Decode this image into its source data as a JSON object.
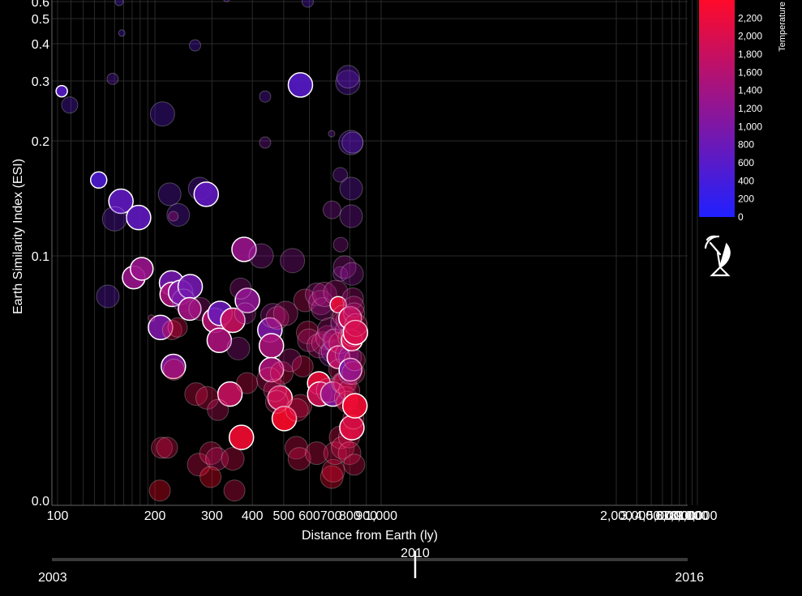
{
  "chart_data": {
    "type": "scatter",
    "title": "",
    "xlabel": "Distance from Earth (ly)",
    "ylabel": "Earth Similarity Index (ESI)",
    "x_scale": "log",
    "y_scale": "log",
    "x_tick_labels": [
      "100",
      "200",
      "300",
      "400",
      "500",
      "600",
      "700",
      "800",
      "900",
      "1,000",
      "2,000",
      "3,000",
      "4,000",
      "5,000",
      "6,000",
      "7,000",
      "8,000",
      "9,000",
      "10,000"
    ],
    "y_tick_labels": [
      "0.0",
      "0.1",
      "0.2",
      "0.3",
      "0.4",
      "0.5",
      "0.6"
    ],
    "color_legend": {
      "title": "Temperature",
      "ticks": [
        "0",
        "200",
        "400",
        "600",
        "800",
        "1,000",
        "1,200",
        "1,400",
        "1,600",
        "1,800",
        "2,000",
        "2,200"
      ],
      "min": 0,
      "max": 2400,
      "color_low": "#2020ff",
      "color_high": "#ff0a2a"
    },
    "timeline": {
      "start": "2003",
      "end": "2016",
      "current": "2010",
      "current_fraction": 0.5714
    },
    "points": [
      {
        "x": 103,
        "y": 0.28,
        "t": 600,
        "s": 7,
        "hi": true
      },
      {
        "x": 109,
        "y": 0.255,
        "t": 600,
        "s": 10,
        "hi": false
      },
      {
        "x": 134,
        "y": 0.158,
        "t": 500,
        "s": 10,
        "hi": true
      },
      {
        "x": 157,
        "y": 0.139,
        "t": 700,
        "s": 15,
        "hi": true
      },
      {
        "x": 178,
        "y": 0.126,
        "t": 700,
        "s": 15,
        "hi": true
      },
      {
        "x": 150,
        "y": 0.125,
        "t": 700,
        "s": 15,
        "hi": false
      },
      {
        "x": 143,
        "y": 0.077,
        "t": 700,
        "s": 14,
        "hi": false
      },
      {
        "x": 172,
        "y": 0.087,
        "t": 1300,
        "s": 14,
        "hi": true
      },
      {
        "x": 182,
        "y": 0.092,
        "t": 1300,
        "s": 14,
        "hi": true
      },
      {
        "x": 148,
        "y": 0.305,
        "t": 700,
        "s": 7,
        "hi": false
      },
      {
        "x": 158,
        "y": 0.44,
        "t": 500,
        "s": 4,
        "hi": false
      },
      {
        "x": 155,
        "y": 0.6,
        "t": 500,
        "s": 5,
        "hi": false
      },
      {
        "x": 211,
        "y": 0.24,
        "t": 600,
        "s": 15,
        "hi": false
      },
      {
        "x": 222,
        "y": 0.145,
        "t": 700,
        "s": 14,
        "hi": false
      },
      {
        "x": 236,
        "y": 0.128,
        "t": 700,
        "s": 14,
        "hi": false
      },
      {
        "x": 228,
        "y": 0.127,
        "t": 1500,
        "s": 6,
        "hi": false
      },
      {
        "x": 208,
        "y": 0.063,
        "t": 1000,
        "s": 15,
        "hi": true
      },
      {
        "x": 225,
        "y": 0.084,
        "t": 900,
        "s": 15,
        "hi": true
      },
      {
        "x": 226,
        "y": 0.078,
        "t": 1500,
        "s": 15,
        "hi": true
      },
      {
        "x": 240,
        "y": 0.079,
        "t": 1000,
        "s": 15,
        "hi": true
      },
      {
        "x": 257,
        "y": 0.082,
        "t": 900,
        "s": 15,
        "hi": true
      },
      {
        "x": 245,
        "y": 0.075,
        "t": 900,
        "s": 14,
        "hi": false
      },
      {
        "x": 228,
        "y": 0.049,
        "t": 1100,
        "s": 15,
        "hi": true
      },
      {
        "x": 256,
        "y": 0.071,
        "t": 1400,
        "s": 14,
        "hi": true
      },
      {
        "x": 276,
        "y": 0.071,
        "t": 1400,
        "s": 14,
        "hi": false
      },
      {
        "x": 226,
        "y": 0.062,
        "t": 2000,
        "s": 12,
        "hi": false
      },
      {
        "x": 235,
        "y": 0.063,
        "t": 2000,
        "s": 12,
        "hi": false
      },
      {
        "x": 195,
        "y": 0.067,
        "t": 1500,
        "s": 4,
        "hi": false
      },
      {
        "x": 229,
        "y": 0.048,
        "t": 2000,
        "s": 13,
        "hi": false
      },
      {
        "x": 266,
        "y": 0.395,
        "t": 600,
        "s": 7,
        "hi": false
      },
      {
        "x": 275,
        "y": 0.15,
        "t": 700,
        "s": 14,
        "hi": false
      },
      {
        "x": 288,
        "y": 0.145,
        "t": 700,
        "s": 15,
        "hi": true
      },
      {
        "x": 306,
        "y": 0.066,
        "t": 1600,
        "s": 15,
        "hi": true
      },
      {
        "x": 318,
        "y": 0.069,
        "t": 800,
        "s": 15,
        "hi": true
      },
      {
        "x": 316,
        "y": 0.058,
        "t": 1500,
        "s": 15,
        "hi": true
      },
      {
        "x": 348,
        "y": 0.066,
        "t": 1800,
        "s": 15,
        "hi": true
      },
      {
        "x": 341,
        "y": 0.041,
        "t": 1800,
        "s": 15,
        "hi": true
      },
      {
        "x": 370,
        "y": 0.031,
        "t": 2300,
        "s": 15,
        "hi": true
      },
      {
        "x": 377,
        "y": 0.104,
        "t": 1300,
        "s": 15,
        "hi": true
      },
      {
        "x": 386,
        "y": 0.075,
        "t": 1200,
        "s": 15,
        "hi": true
      },
      {
        "x": 380,
        "y": 0.069,
        "t": 1300,
        "s": 13,
        "hi": false
      },
      {
        "x": 368,
        "y": 0.081,
        "t": 1300,
        "s": 13,
        "hi": false
      },
      {
        "x": 362,
        "y": 0.055,
        "t": 1300,
        "s": 14,
        "hi": false
      },
      {
        "x": 268,
        "y": 0.041,
        "t": 2000,
        "s": 14,
        "hi": false
      },
      {
        "x": 290,
        "y": 0.04,
        "t": 2000,
        "s": 14,
        "hi": false
      },
      {
        "x": 313,
        "y": 0.037,
        "t": 1800,
        "s": 13,
        "hi": false
      },
      {
        "x": 385,
        "y": 0.044,
        "t": 2000,
        "s": 13,
        "hi": false
      },
      {
        "x": 210,
        "y": 0.029,
        "t": 2000,
        "s": 13,
        "hi": false
      },
      {
        "x": 218,
        "y": 0.029,
        "t": 2000,
        "s": 13,
        "hi": false
      },
      {
        "x": 207,
        "y": 0.022,
        "t": 2400,
        "s": 13,
        "hi": false
      },
      {
        "x": 273,
        "y": 0.026,
        "t": 2000,
        "s": 14,
        "hi": false
      },
      {
        "x": 298,
        "y": 0.028,
        "t": 2000,
        "s": 14,
        "hi": false
      },
      {
        "x": 311,
        "y": 0.027,
        "t": 1800,
        "s": 14,
        "hi": false
      },
      {
        "x": 297,
        "y": 0.024,
        "t": 2400,
        "s": 13,
        "hi": false
      },
      {
        "x": 348,
        "y": 0.027,
        "t": 2000,
        "s": 14,
        "hi": false
      },
      {
        "x": 352,
        "y": 0.022,
        "t": 2000,
        "s": 13,
        "hi": false
      },
      {
        "x": 426,
        "y": 0.1,
        "t": 1200,
        "s": 15,
        "hi": false
      },
      {
        "x": 453,
        "y": 0.062,
        "t": 1000,
        "s": 15,
        "hi": true
      },
      {
        "x": 458,
        "y": 0.056,
        "t": 1500,
        "s": 15,
        "hi": true
      },
      {
        "x": 458,
        "y": 0.048,
        "t": 1500,
        "s": 15,
        "hi": true
      },
      {
        "x": 463,
        "y": 0.068,
        "t": 1300,
        "s": 15,
        "hi": false
      },
      {
        "x": 478,
        "y": 0.067,
        "t": 1700,
        "s": 14,
        "hi": false
      },
      {
        "x": 507,
        "y": 0.069,
        "t": 1600,
        "s": 15,
        "hi": false
      },
      {
        "x": 487,
        "y": 0.04,
        "t": 2000,
        "s": 15,
        "hi": true
      },
      {
        "x": 502,
        "y": 0.035,
        "t": 2400,
        "s": 15,
        "hi": true
      },
      {
        "x": 450,
        "y": 0.045,
        "t": 1800,
        "s": 15,
        "hi": false
      },
      {
        "x": 470,
        "y": 0.042,
        "t": 1800,
        "s": 14,
        "hi": false
      },
      {
        "x": 493,
        "y": 0.047,
        "t": 2000,
        "s": 14,
        "hi": false
      },
      {
        "x": 476,
        "y": 0.039,
        "t": 1800,
        "s": 14,
        "hi": false
      },
      {
        "x": 523,
        "y": 0.051,
        "t": 1500,
        "s": 14,
        "hi": false
      },
      {
        "x": 532,
        "y": 0.097,
        "t": 1200,
        "s": 15,
        "hi": false
      },
      {
        "x": 563,
        "y": 0.292,
        "t": 600,
        "s": 15,
        "hi": true
      },
      {
        "x": 438,
        "y": 0.27,
        "t": 700,
        "s": 7,
        "hi": false
      },
      {
        "x": 438,
        "y": 0.198,
        "t": 1000,
        "s": 7,
        "hi": false
      },
      {
        "x": 563,
        "y": 0.038,
        "t": 2000,
        "s": 14,
        "hi": false
      },
      {
        "x": 549,
        "y": 0.037,
        "t": 2000,
        "s": 14,
        "hi": false
      },
      {
        "x": 547,
        "y": 0.029,
        "t": 2000,
        "s": 14,
        "hi": false
      },
      {
        "x": 559,
        "y": 0.027,
        "t": 2000,
        "s": 14,
        "hi": false
      },
      {
        "x": 572,
        "y": 0.049,
        "t": 2000,
        "s": 13,
        "hi": false
      },
      {
        "x": 582,
        "y": 0.075,
        "t": 1800,
        "s": 14,
        "hi": false
      },
      {
        "x": 593,
        "y": 0.061,
        "t": 1900,
        "s": 14,
        "hi": false
      },
      {
        "x": 598,
        "y": 0.058,
        "t": 1600,
        "s": 14,
        "hi": false
      },
      {
        "x": 632,
        "y": 0.028,
        "t": 2000,
        "s": 14,
        "hi": false
      },
      {
        "x": 642,
        "y": 0.044,
        "t": 2200,
        "s": 14,
        "hi": true
      },
      {
        "x": 646,
        "y": 0.041,
        "t": 1900,
        "s": 15,
        "hi": true
      },
      {
        "x": 632,
        "y": 0.078,
        "t": 1400,
        "s": 14,
        "hi": false
      },
      {
        "x": 651,
        "y": 0.074,
        "t": 1400,
        "s": 15,
        "hi": false
      },
      {
        "x": 660,
        "y": 0.071,
        "t": 1400,
        "s": 14,
        "hi": false
      },
      {
        "x": 669,
        "y": 0.078,
        "t": 1500,
        "s": 15,
        "hi": false
      },
      {
        "x": 643,
        "y": 0.056,
        "t": 1600,
        "s": 15,
        "hi": false
      },
      {
        "x": 661,
        "y": 0.057,
        "t": 1700,
        "s": 14,
        "hi": false
      },
      {
        "x": 685,
        "y": 0.059,
        "t": 1600,
        "s": 15,
        "hi": false
      },
      {
        "x": 693,
        "y": 0.062,
        "t": 1500,
        "s": 15,
        "hi": false
      },
      {
        "x": 700,
        "y": 0.053,
        "t": 1100,
        "s": 15,
        "hi": false
      },
      {
        "x": 709,
        "y": 0.041,
        "t": 1100,
        "s": 15,
        "hi": true
      },
      {
        "x": 688,
        "y": 0.042,
        "t": 1700,
        "s": 15,
        "hi": false
      },
      {
        "x": 704,
        "y": 0.024,
        "t": 2300,
        "s": 14,
        "hi": false
      },
      {
        "x": 712,
        "y": 0.025,
        "t": 2200,
        "s": 14,
        "hi": false
      },
      {
        "x": 705,
        "y": 0.132,
        "t": 1100,
        "s": 11,
        "hi": false
      },
      {
        "x": 708,
        "y": 0.054,
        "t": 1300,
        "s": 14,
        "hi": false
      },
      {
        "x": 715,
        "y": 0.058,
        "t": 1200,
        "s": 14,
        "hi": false
      },
      {
        "x": 703,
        "y": 0.21,
        "t": 900,
        "s": 4,
        "hi": false
      },
      {
        "x": 721,
        "y": 0.028,
        "t": 2000,
        "s": 14,
        "hi": false
      },
      {
        "x": 724,
        "y": 0.079,
        "t": 1500,
        "s": 15,
        "hi": false
      },
      {
        "x": 722,
        "y": 0.058,
        "t": 1800,
        "s": 14,
        "hi": false
      },
      {
        "x": 737,
        "y": 0.073,
        "t": 2200,
        "s": 10,
        "hi": true
      },
      {
        "x": 738,
        "y": 0.052,
        "t": 1700,
        "s": 14,
        "hi": true
      },
      {
        "x": 742,
        "y": 0.048,
        "t": 1800,
        "s": 13,
        "hi": false
      },
      {
        "x": 744,
        "y": 0.057,
        "t": 1900,
        "s": 13,
        "hi": false
      },
      {
        "x": 748,
        "y": 0.163,
        "t": 900,
        "s": 9,
        "hi": false
      },
      {
        "x": 750,
        "y": 0.107,
        "t": 1200,
        "s": 9,
        "hi": false
      },
      {
        "x": 748,
        "y": 0.089,
        "t": 1100,
        "s": 9,
        "hi": false
      },
      {
        "x": 754,
        "y": 0.065,
        "t": 1300,
        "s": 13,
        "hi": false
      },
      {
        "x": 757,
        "y": 0.044,
        "t": 1800,
        "s": 13,
        "hi": false
      },
      {
        "x": 749,
        "y": 0.031,
        "t": 2000,
        "s": 14,
        "hi": false
      },
      {
        "x": 761,
        "y": 0.029,
        "t": 2000,
        "s": 14,
        "hi": false
      },
      {
        "x": 763,
        "y": 0.068,
        "t": 1800,
        "s": 13,
        "hi": false
      },
      {
        "x": 767,
        "y": 0.044,
        "t": 1800,
        "s": 14,
        "hi": false
      },
      {
        "x": 771,
        "y": 0.093,
        "t": 1300,
        "s": 14,
        "hi": false
      },
      {
        "x": 774,
        "y": 0.044,
        "t": 2000,
        "s": 14,
        "hi": false
      },
      {
        "x": 777,
        "y": 0.04,
        "t": 2000,
        "s": 14,
        "hi": false
      },
      {
        "x": 778,
        "y": 0.062,
        "t": 1600,
        "s": 13,
        "hi": false
      },
      {
        "x": 782,
        "y": 0.053,
        "t": 1400,
        "s": 14,
        "hi": false
      },
      {
        "x": 784,
        "y": 0.039,
        "t": 2100,
        "s": 13,
        "hi": false
      },
      {
        "x": 787,
        "y": 0.066,
        "t": 1500,
        "s": 14,
        "hi": false
      },
      {
        "x": 789,
        "y": 0.297,
        "t": 700,
        "s": 15,
        "hi": false
      },
      {
        "x": 791,
        "y": 0.31,
        "t": 700,
        "s": 14,
        "hi": false
      },
      {
        "x": 793,
        "y": 0.059,
        "t": 2000,
        "s": 13,
        "hi": false
      },
      {
        "x": 797,
        "y": 0.042,
        "t": 1900,
        "s": 13,
        "hi": false
      },
      {
        "x": 796,
        "y": 0.031,
        "t": 2000,
        "s": 13,
        "hi": false
      },
      {
        "x": 799,
        "y": 0.028,
        "t": 2000,
        "s": 14,
        "hi": false
      },
      {
        "x": 800,
        "y": 0.047,
        "t": 1000,
        "s": 14,
        "hi": false
      },
      {
        "x": 802,
        "y": 0.052,
        "t": 900,
        "s": 14,
        "hi": false
      },
      {
        "x": 802,
        "y": 0.067,
        "t": 1900,
        "s": 14,
        "hi": true
      },
      {
        "x": 804,
        "y": 0.048,
        "t": 1000,
        "s": 14,
        "hi": true
      },
      {
        "x": 806,
        "y": 0.198,
        "t": 700,
        "s": 15,
        "hi": false
      },
      {
        "x": 808,
        "y": 0.15,
        "t": 800,
        "s": 14,
        "hi": false
      },
      {
        "x": 808,
        "y": 0.127,
        "t": 1000,
        "s": 14,
        "hi": false
      },
      {
        "x": 810,
        "y": 0.06,
        "t": 2000,
        "s": 13,
        "hi": false
      },
      {
        "x": 812,
        "y": 0.058,
        "t": 2000,
        "s": 13,
        "hi": true
      },
      {
        "x": 812,
        "y": 0.033,
        "t": 2100,
        "s": 15,
        "hi": true
      },
      {
        "x": 813,
        "y": 0.089,
        "t": 1200,
        "s": 14,
        "hi": false
      },
      {
        "x": 816,
        "y": 0.198,
        "t": 700,
        "s": 13,
        "hi": false
      },
      {
        "x": 817,
        "y": 0.06,
        "t": 1700,
        "s": 14,
        "hi": false
      },
      {
        "x": 818,
        "y": 0.076,
        "t": 1500,
        "s": 13,
        "hi": false
      },
      {
        "x": 820,
        "y": 0.047,
        "t": 1800,
        "s": 14,
        "hi": false
      },
      {
        "x": 821,
        "y": 0.035,
        "t": 2000,
        "s": 13,
        "hi": false
      },
      {
        "x": 823,
        "y": 0.072,
        "t": 1600,
        "s": 13,
        "hi": false
      },
      {
        "x": 825,
        "y": 0.069,
        "t": 1700,
        "s": 13,
        "hi": false
      },
      {
        "x": 826,
        "y": 0.026,
        "t": 2000,
        "s": 13,
        "hi": false
      },
      {
        "x": 828,
        "y": 0.051,
        "t": 1800,
        "s": 13,
        "hi": false
      },
      {
        "x": 830,
        "y": 0.038,
        "t": 2300,
        "s": 15,
        "hi": true
      },
      {
        "x": 833,
        "y": 0.061,
        "t": 2000,
        "s": 15,
        "hi": true
      },
      {
        "x": 836,
        "y": 0.064,
        "t": 1900,
        "s": 14,
        "hi": false
      },
      {
        "x": 333,
        "y": 0.62,
        "t": 600,
        "s": 4,
        "hi": false
      },
      {
        "x": 593,
        "y": 0.6,
        "t": 600,
        "s": 7,
        "hi": false
      }
    ]
  }
}
